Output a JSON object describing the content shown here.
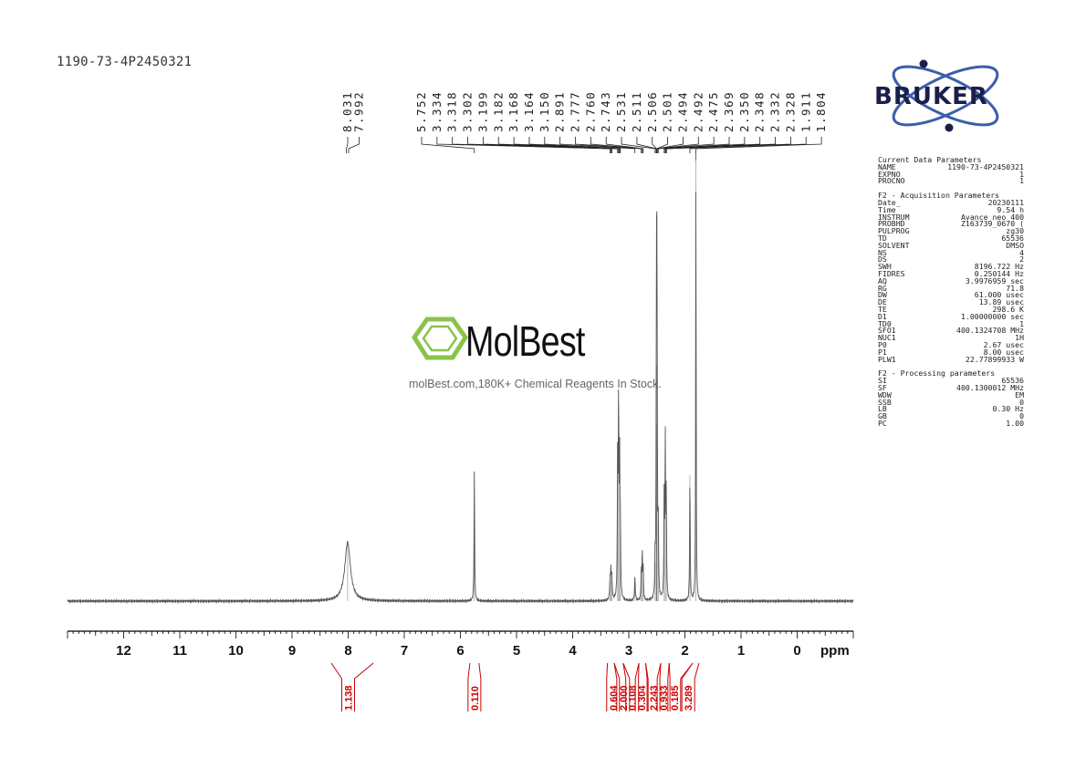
{
  "header": {
    "sample_id": "1190-73-4P2450321"
  },
  "logos": {
    "bruker": "BRUKER",
    "molbest": "MolBest",
    "molbest_tagline": "molBest.com,180K+ Chemical Reagents In Stock."
  },
  "params": [
    {
      "type": "title",
      "text": "Current Data Parameters"
    },
    {
      "type": "row",
      "k": "NAME",
      "v": "1190-73-4P2450321"
    },
    {
      "type": "row",
      "k": "EXPNO",
      "v": "1"
    },
    {
      "type": "row",
      "k": "PROCNO",
      "v": "1"
    },
    {
      "type": "gap"
    },
    {
      "type": "title",
      "text": "F2 - Acquisition Parameters"
    },
    {
      "type": "row",
      "k": "Date_",
      "v": "20230111"
    },
    {
      "type": "row",
      "k": "Time",
      "v": "9.54 h"
    },
    {
      "type": "row",
      "k": "INSTRUM",
      "v": "Avance neo 400"
    },
    {
      "type": "row",
      "k": "PROBHD",
      "v": "Z163739_0670 ("
    },
    {
      "type": "row",
      "k": "PULPROG",
      "v": "zg30"
    },
    {
      "type": "row",
      "k": "TD",
      "v": "65536"
    },
    {
      "type": "row",
      "k": "SOLVENT",
      "v": "DMSO"
    },
    {
      "type": "row",
      "k": "NS",
      "v": "4"
    },
    {
      "type": "row",
      "k": "DS",
      "v": "2"
    },
    {
      "type": "row",
      "k": "SWH",
      "v": "8196.722 Hz"
    },
    {
      "type": "row",
      "k": "FIDRES",
      "v": "0.250144 Hz"
    },
    {
      "type": "row",
      "k": "AQ",
      "v": "3.9976959 sec"
    },
    {
      "type": "row",
      "k": "RG",
      "v": "71.8"
    },
    {
      "type": "row",
      "k": "DW",
      "v": "61.000 usec"
    },
    {
      "type": "row",
      "k": "DE",
      "v": "13.89 usec"
    },
    {
      "type": "row",
      "k": "TE",
      "v": "298.6 K"
    },
    {
      "type": "row",
      "k": "D1",
      "v": "1.00000000 sec"
    },
    {
      "type": "row",
      "k": "TD0",
      "v": "1"
    },
    {
      "type": "row",
      "k": "SFO1",
      "v": "400.1324708 MHz"
    },
    {
      "type": "row",
      "k": "NUC1",
      "v": "1H"
    },
    {
      "type": "row",
      "k": "P0",
      "v": "2.67 usec"
    },
    {
      "type": "row",
      "k": "P1",
      "v": "8.00 usec"
    },
    {
      "type": "row",
      "k": "PLW1",
      "v": "22.77899933 W"
    },
    {
      "type": "gap"
    },
    {
      "type": "title",
      "text": "F2 - Processing parameters"
    },
    {
      "type": "row",
      "k": "SI",
      "v": "65536"
    },
    {
      "type": "row",
      "k": "SF",
      "v": "400.1300012 MHz"
    },
    {
      "type": "row",
      "k": "WDW",
      "v": "EM"
    },
    {
      "type": "row",
      "k": "SSB",
      "v": "0"
    },
    {
      "type": "row",
      "k": "LB",
      "v": "0.30 Hz"
    },
    {
      "type": "row",
      "k": "GB",
      "v": "0"
    },
    {
      "type": "row",
      "k": "PC",
      "v": "1.00"
    }
  ],
  "chart_data": {
    "type": "line",
    "xlabel": "ppm",
    "x_reversed": true,
    "xlim": [
      13.0,
      -1.0
    ],
    "xticks": [
      12,
      11,
      10,
      9,
      8,
      7,
      6,
      5,
      4,
      3,
      2,
      1,
      0
    ],
    "peak_groups": [
      {
        "labels": [
          "8.031",
          "7.992"
        ],
        "range": [
          8.06,
          7.97
        ]
      },
      {
        "labels": [
          "5.752",
          "3.334",
          "3.318",
          "3.302",
          "3.199",
          "3.182",
          "3.168",
          "3.164",
          "3.150",
          "2.891",
          "2.777",
          "2.760",
          "2.743",
          "2.531",
          "2.511",
          "2.506",
          "2.501",
          "2.494",
          "2.492",
          "2.475",
          "2.369",
          "2.350",
          "2.348",
          "2.332",
          "2.328",
          "1.911",
          "1.804"
        ],
        "range": [
          5.78,
          1.78
        ]
      }
    ],
    "peaks": [
      {
        "ppm": 8.01,
        "height": 0.15,
        "width": 0.06
      },
      {
        "ppm": 5.752,
        "height": 0.33,
        "width": 0.006
      },
      {
        "ppm": 3.334,
        "height": 0.05,
        "width": 0.008
      },
      {
        "ppm": 3.318,
        "height": 0.07,
        "width": 0.008
      },
      {
        "ppm": 3.302,
        "height": 0.05,
        "width": 0.008
      },
      {
        "ppm": 3.199,
        "height": 0.35,
        "width": 0.006
      },
      {
        "ppm": 3.182,
        "height": 0.5,
        "width": 0.006
      },
      {
        "ppm": 3.164,
        "height": 0.36,
        "width": 0.006
      },
      {
        "ppm": 3.15,
        "height": 0.18,
        "width": 0.006
      },
      {
        "ppm": 2.891,
        "height": 0.06,
        "width": 0.008
      },
      {
        "ppm": 2.777,
        "height": 0.08,
        "width": 0.006
      },
      {
        "ppm": 2.76,
        "height": 0.12,
        "width": 0.006
      },
      {
        "ppm": 2.743,
        "height": 0.08,
        "width": 0.006
      },
      {
        "ppm": 2.531,
        "height": 0.1,
        "width": 0.006
      },
      {
        "ppm": 2.511,
        "height": 0.25,
        "width": 0.005
      },
      {
        "ppm": 2.506,
        "height": 0.45,
        "width": 0.005
      },
      {
        "ppm": 2.501,
        "height": 0.6,
        "width": 0.005
      },
      {
        "ppm": 2.494,
        "height": 0.42,
        "width": 0.005
      },
      {
        "ppm": 2.475,
        "height": 0.2,
        "width": 0.006
      },
      {
        "ppm": 2.369,
        "height": 0.28,
        "width": 0.006
      },
      {
        "ppm": 2.35,
        "height": 0.4,
        "width": 0.006
      },
      {
        "ppm": 2.332,
        "height": 0.26,
        "width": 0.006
      },
      {
        "ppm": 1.911,
        "height": 0.32,
        "width": 0.006
      },
      {
        "ppm": 1.804,
        "height": 1.12,
        "width": 0.005
      }
    ],
    "integrals": [
      {
        "value": "1.138",
        "from": 8.3,
        "to": 7.55,
        "center": 8.0
      },
      {
        "value": "0.110",
        "from": 5.83,
        "to": 5.67,
        "center": 5.75
      },
      {
        "value": "0.604",
        "from": 3.38,
        "to": 3.26,
        "center": 3.28
      },
      {
        "value": "2.000",
        "from": 3.26,
        "to": 3.1,
        "center": 3.1
      },
      {
        "value": "0.108",
        "from": 3.1,
        "to": 2.82,
        "center": 2.94
      },
      {
        "value": "0.304",
        "from": 2.82,
        "to": 2.7,
        "center": 2.77
      },
      {
        "value": "2.243",
        "from": 2.7,
        "to": 2.43,
        "center": 2.56
      },
      {
        "value": "0.933",
        "from": 2.43,
        "to": 2.28,
        "center": 2.38
      },
      {
        "value": "0.185",
        "from": 2.28,
        "to": 1.86,
        "center": 2.19
      },
      {
        "value": "3.289",
        "from": 1.86,
        "to": 1.75,
        "center": 1.94
      }
    ],
    "colors": {
      "spectrum": "#555555",
      "integral": "#cc0000",
      "axis": "#000000"
    }
  }
}
